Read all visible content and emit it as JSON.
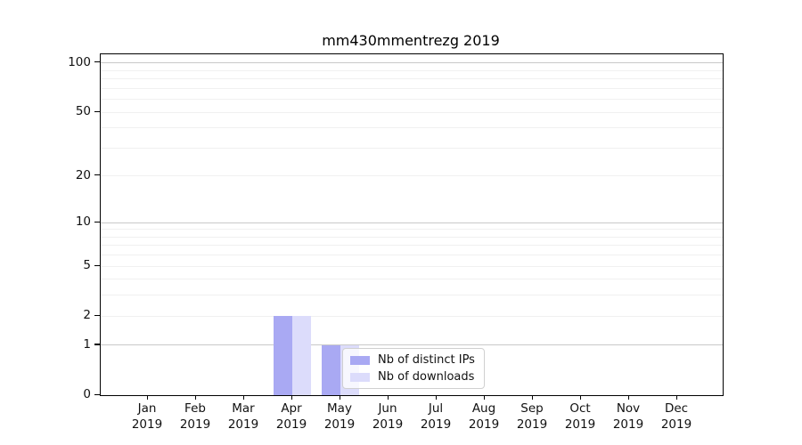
{
  "chart_data": {
    "type": "bar",
    "title": "mm430mmentrezg 2019",
    "x": {
      "categories": [
        "Jan",
        "Feb",
        "Mar",
        "Apr",
        "May",
        "Jun",
        "Jul",
        "Aug",
        "Sep",
        "Oct",
        "Nov",
        "Dec"
      ],
      "year_label": "2019"
    },
    "y": {
      "scale": "log1p",
      "ticks": [
        0,
        1,
        2,
        5,
        10,
        20,
        50,
        100
      ],
      "ymax": 113,
      "gridlines_minor": [
        2,
        3,
        4,
        5,
        6,
        7,
        8,
        9,
        20,
        30,
        40,
        50,
        60,
        70,
        80,
        90
      ],
      "gridlines_major": [
        1,
        10,
        100
      ],
      "grid": true
    },
    "series": [
      {
        "name": "Nb of distinct IPs",
        "color": "#a9a9f3",
        "values": [
          0,
          0,
          0,
          2,
          1,
          0,
          0,
          0,
          0,
          0,
          0,
          0
        ]
      },
      {
        "name": "Nb of downloads",
        "color": "#dcdcfb",
        "values": [
          0,
          0,
          0,
          2,
          1,
          0,
          0,
          0,
          0,
          0,
          0,
          0
        ]
      }
    ],
    "legend": {
      "position": "lower right area of plot",
      "entries": [
        "Nb of distinct IPs",
        "Nb of downloads"
      ]
    }
  },
  "colors": {
    "axis": "#000000",
    "grid_minor": "#f0f0f0",
    "grid_major": "#c9c9c9",
    "text": "#111111",
    "legend_border": "#d0d0d0"
  }
}
